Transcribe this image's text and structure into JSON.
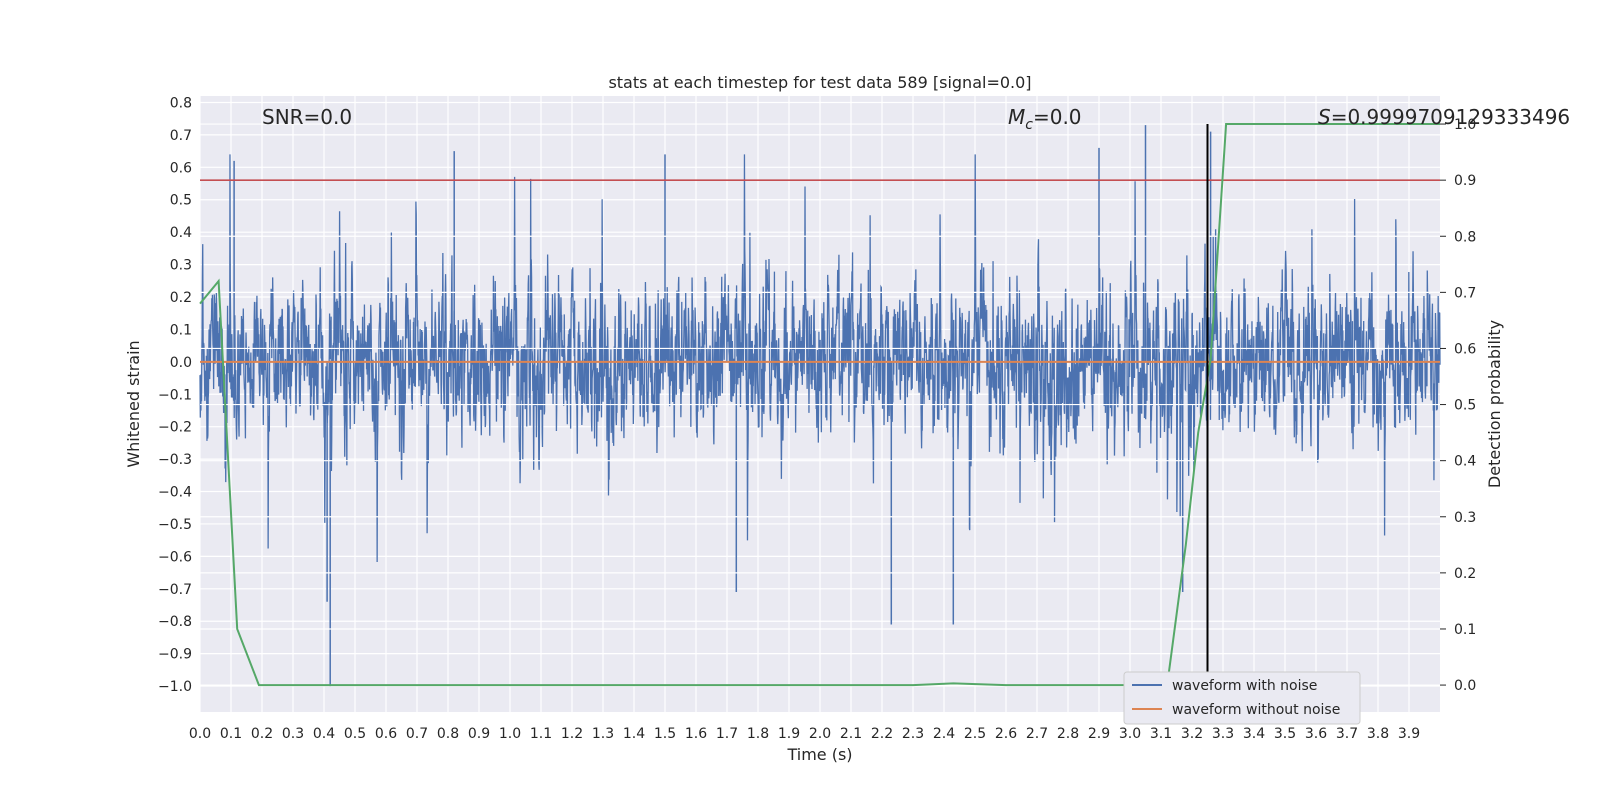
{
  "chart_data": {
    "type": "line",
    "title": "stats at each timestep for test data 589 [signal=0.0]",
    "xlabel": "Time (s)",
    "ylabel": "Whitened strain",
    "y2label": "Detection probability",
    "xlim": [
      0.0,
      4.0
    ],
    "ylim": [
      -1.08,
      0.82
    ],
    "y2lim": [
      -0.048,
      1.05
    ],
    "xticks": [
      "0.0",
      "0.1",
      "0.2",
      "0.3",
      "0.4",
      "0.5",
      "0.6",
      "0.7",
      "0.8",
      "0.9",
      "1.0",
      "1.1",
      "1.2",
      "1.3",
      "1.4",
      "1.5",
      "1.6",
      "1.7",
      "1.8",
      "1.9",
      "2.0",
      "2.1",
      "2.2",
      "2.3",
      "2.4",
      "2.5",
      "2.6",
      "2.7",
      "2.8",
      "2.9",
      "3.0",
      "3.1",
      "3.2",
      "3.3",
      "3.4",
      "3.5",
      "3.6",
      "3.7",
      "3.8",
      "3.9"
    ],
    "yticks": [
      "0.8",
      "0.7",
      "0.6",
      "0.5",
      "0.4",
      "0.3",
      "0.2",
      "0.1",
      "0.0",
      "−0.1",
      "−0.2",
      "−0.3",
      "−0.4",
      "−0.5",
      "−0.6",
      "−0.7",
      "−0.8",
      "−0.9",
      "−1.0"
    ],
    "y2ticks": [
      "0.0",
      "0.1",
      "0.2",
      "0.3",
      "0.4",
      "0.5",
      "0.6",
      "0.7",
      "0.8",
      "0.9",
      "1.0"
    ],
    "annotations": {
      "snr": "SNR=0.0",
      "mc_symbol": "M",
      "mc_sub": "c",
      "mc_value": "=0.0",
      "s_symbol": "S",
      "s_value": "=0.9999709129333496"
    },
    "legend": {
      "location": "lower-right",
      "entries": [
        "waveform with noise",
        "waveform without noise"
      ]
    },
    "threshold_probability": 0.9,
    "detection_time": 3.25,
    "series": [
      {
        "name": "waveform with noise",
        "color": "#4c72b0",
        "description": "noisy whitened strain fluctuating roughly between -0.6 and 0.7, dense samples",
        "typical_range": [
          -0.5,
          0.6
        ],
        "notable_peaks": [
          {
            "x": 0.11,
            "y": 0.62
          },
          {
            "x": 0.41,
            "y": -0.74
          },
          {
            "x": 0.42,
            "y": -1.0
          },
          {
            "x": 0.82,
            "y": 0.65
          },
          {
            "x": 1.5,
            "y": 0.64
          },
          {
            "x": 1.73,
            "y": -0.71
          },
          {
            "x": 2.23,
            "y": -0.81
          },
          {
            "x": 2.43,
            "y": -0.81
          },
          {
            "x": 2.9,
            "y": 0.66
          },
          {
            "x": 3.05,
            "y": 0.73
          },
          {
            "x": 3.17,
            "y": -0.71
          },
          {
            "x": 3.26,
            "y": 0.71
          }
        ]
      },
      {
        "name": "waveform without noise",
        "color": "#dd8452",
        "x": [
          0.0,
          4.0
        ],
        "y": [
          0.0,
          0.0
        ]
      },
      {
        "name": "detection probability",
        "color": "#55a868",
        "axis": "right",
        "x": [
          0.0,
          0.06,
          0.12,
          0.19,
          0.25,
          1.0,
          2.0,
          2.3,
          2.43,
          2.6,
          3.0,
          3.12,
          3.18,
          3.22,
          3.26,
          3.31,
          4.0
        ],
        "y": [
          0.68,
          0.72,
          0.1,
          0.0,
          0.0,
          0.0,
          0.0,
          0.0,
          0.003,
          0.0,
          0.0,
          0.0,
          0.25,
          0.45,
          0.58,
          1.0,
          1.0
        ]
      },
      {
        "name": "threshold",
        "color": "#c44e52",
        "axis": "right",
        "x": [
          0.0,
          4.0
        ],
        "y": [
          0.9,
          0.9
        ]
      }
    ]
  }
}
